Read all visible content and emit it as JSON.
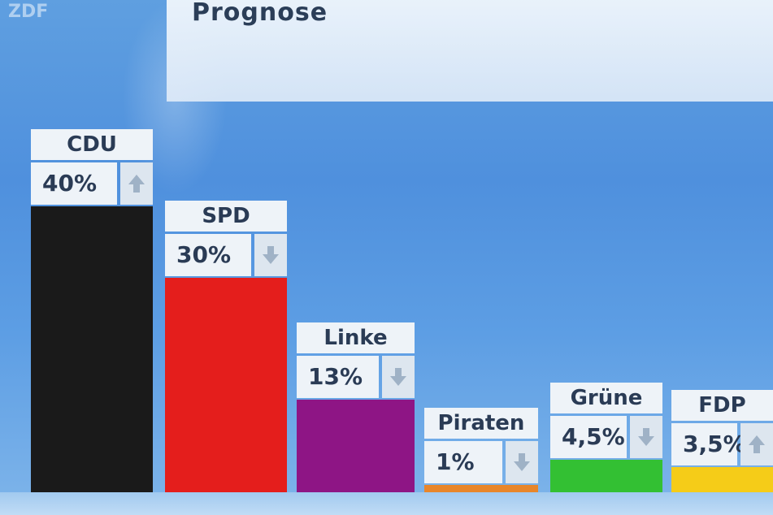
{
  "header": {
    "title": "Prognose",
    "logo": "ZDF"
  },
  "colors": {
    "CDU": "#1a1a1a",
    "SPD": "#e41e1c",
    "Linke": "#8e1585",
    "Piraten": "#e8862a",
    "Grüne": "#33c033",
    "FDP": "#f5cc18"
  },
  "chart_data": {
    "type": "bar",
    "title": "Prognose",
    "ylim": [
      0,
      40
    ],
    "grid": false,
    "legend": "none",
    "categories": [
      "CDU",
      "SPD",
      "Linke",
      "Piraten",
      "Grüne",
      "FDP"
    ],
    "values": [
      40,
      30,
      13,
      1,
      4.5,
      3.5
    ],
    "value_labels": [
      "40%",
      "30%",
      "13%",
      "1%",
      "4,5%",
      "3,5%"
    ],
    "trend": [
      "up",
      "down",
      "down",
      "down",
      "down",
      "up"
    ]
  }
}
